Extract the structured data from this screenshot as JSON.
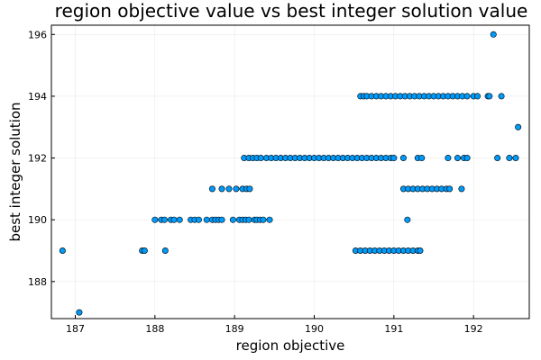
{
  "chart_data": {
    "type": "scatter",
    "title": "region objective value vs best integer solution value",
    "xlabel": "region objective",
    "ylabel": "best integer solution",
    "xlim": [
      186.7,
      192.7
    ],
    "ylim": [
      186.8,
      196.3
    ],
    "xticks": [
      187,
      188,
      189,
      190,
      191,
      192
    ],
    "yticks": [
      188,
      190,
      192,
      194,
      196
    ],
    "grid": true,
    "legend": "none",
    "marker_color": "#009AF9",
    "marker_edge": "#000000",
    "series": [
      {
        "points": [
          [
            186.84,
            189
          ],
          [
            187.05,
            187
          ],
          [
            187.84,
            189
          ],
          [
            187.87,
            189
          ],
          [
            188.13,
            189
          ],
          [
            188.0,
            190
          ],
          [
            188.08,
            190
          ],
          [
            188.12,
            190
          ],
          [
            188.2,
            190
          ],
          [
            188.24,
            190
          ],
          [
            188.31,
            190
          ],
          [
            188.45,
            190
          ],
          [
            188.5,
            190
          ],
          [
            188.55,
            190
          ],
          [
            188.65,
            190
          ],
          [
            188.72,
            190
          ],
          [
            188.76,
            190
          ],
          [
            188.8,
            190
          ],
          [
            188.84,
            190
          ],
          [
            188.98,
            190
          ],
          [
            189.06,
            190
          ],
          [
            189.1,
            190
          ],
          [
            189.14,
            190
          ],
          [
            189.18,
            190
          ],
          [
            189.25,
            190
          ],
          [
            189.28,
            190
          ],
          [
            189.32,
            190
          ],
          [
            189.36,
            190
          ],
          [
            189.44,
            190
          ],
          [
            188.72,
            191
          ],
          [
            188.84,
            191
          ],
          [
            188.93,
            191
          ],
          [
            189.02,
            191
          ],
          [
            189.1,
            191
          ],
          [
            189.15,
            191
          ],
          [
            189.19,
            191
          ],
          [
            189.12,
            192
          ],
          [
            189.18,
            192
          ],
          [
            189.23,
            192
          ],
          [
            189.28,
            192
          ],
          [
            189.33,
            192
          ],
          [
            189.4,
            192
          ],
          [
            189.46,
            192
          ],
          [
            189.52,
            192
          ],
          [
            189.58,
            192
          ],
          [
            189.64,
            192
          ],
          [
            189.7,
            192
          ],
          [
            189.76,
            192
          ],
          [
            189.82,
            192
          ],
          [
            189.88,
            192
          ],
          [
            189.94,
            192
          ],
          [
            190.0,
            192
          ],
          [
            190.06,
            192
          ],
          [
            190.12,
            192
          ],
          [
            190.18,
            192
          ],
          [
            190.24,
            192
          ],
          [
            190.3,
            192
          ],
          [
            190.36,
            192
          ],
          [
            190.42,
            192
          ],
          [
            190.48,
            192
          ],
          [
            190.54,
            192
          ],
          [
            190.6,
            192
          ],
          [
            190.66,
            192
          ],
          [
            190.72,
            192
          ],
          [
            190.78,
            192
          ],
          [
            190.84,
            192
          ],
          [
            190.9,
            192
          ],
          [
            190.96,
            192
          ],
          [
            191.0,
            192
          ],
          [
            191.12,
            192
          ],
          [
            191.3,
            192
          ],
          [
            191.35,
            192
          ],
          [
            191.68,
            192
          ],
          [
            191.8,
            192
          ],
          [
            191.88,
            192
          ],
          [
            191.92,
            192
          ],
          [
            192.3,
            192
          ],
          [
            192.45,
            192
          ],
          [
            192.53,
            192
          ],
          [
            190.58,
            194
          ],
          [
            190.62,
            194
          ],
          [
            190.66,
            194
          ],
          [
            190.72,
            194
          ],
          [
            190.78,
            194
          ],
          [
            190.84,
            194
          ],
          [
            190.9,
            194
          ],
          [
            190.96,
            194
          ],
          [
            191.02,
            194
          ],
          [
            191.08,
            194
          ],
          [
            191.14,
            194
          ],
          [
            191.2,
            194
          ],
          [
            191.26,
            194
          ],
          [
            191.32,
            194
          ],
          [
            191.38,
            194
          ],
          [
            191.44,
            194
          ],
          [
            191.5,
            194
          ],
          [
            191.56,
            194
          ],
          [
            191.62,
            194
          ],
          [
            191.68,
            194
          ],
          [
            191.74,
            194
          ],
          [
            191.8,
            194
          ],
          [
            191.86,
            194
          ],
          [
            191.92,
            194
          ],
          [
            192.0,
            194
          ],
          [
            192.05,
            194
          ],
          [
            192.18,
            194
          ],
          [
            192.2,
            194
          ],
          [
            192.35,
            194
          ],
          [
            191.12,
            191
          ],
          [
            191.18,
            191
          ],
          [
            191.24,
            191
          ],
          [
            191.3,
            191
          ],
          [
            191.36,
            191
          ],
          [
            191.42,
            191
          ],
          [
            191.48,
            191
          ],
          [
            191.54,
            191
          ],
          [
            191.6,
            191
          ],
          [
            191.66,
            191
          ],
          [
            191.7,
            191
          ],
          [
            191.85,
            191
          ],
          [
            191.17,
            190
          ],
          [
            190.52,
            189
          ],
          [
            190.58,
            189
          ],
          [
            190.64,
            189
          ],
          [
            190.7,
            189
          ],
          [
            190.76,
            189
          ],
          [
            190.82,
            189
          ],
          [
            190.88,
            189
          ],
          [
            190.94,
            189
          ],
          [
            191.0,
            189
          ],
          [
            191.06,
            189
          ],
          [
            191.12,
            189
          ],
          [
            191.18,
            189
          ],
          [
            191.24,
            189
          ],
          [
            191.3,
            189
          ],
          [
            191.33,
            189
          ],
          [
            192.56,
            193
          ],
          [
            192.25,
            196
          ]
        ]
      }
    ]
  }
}
